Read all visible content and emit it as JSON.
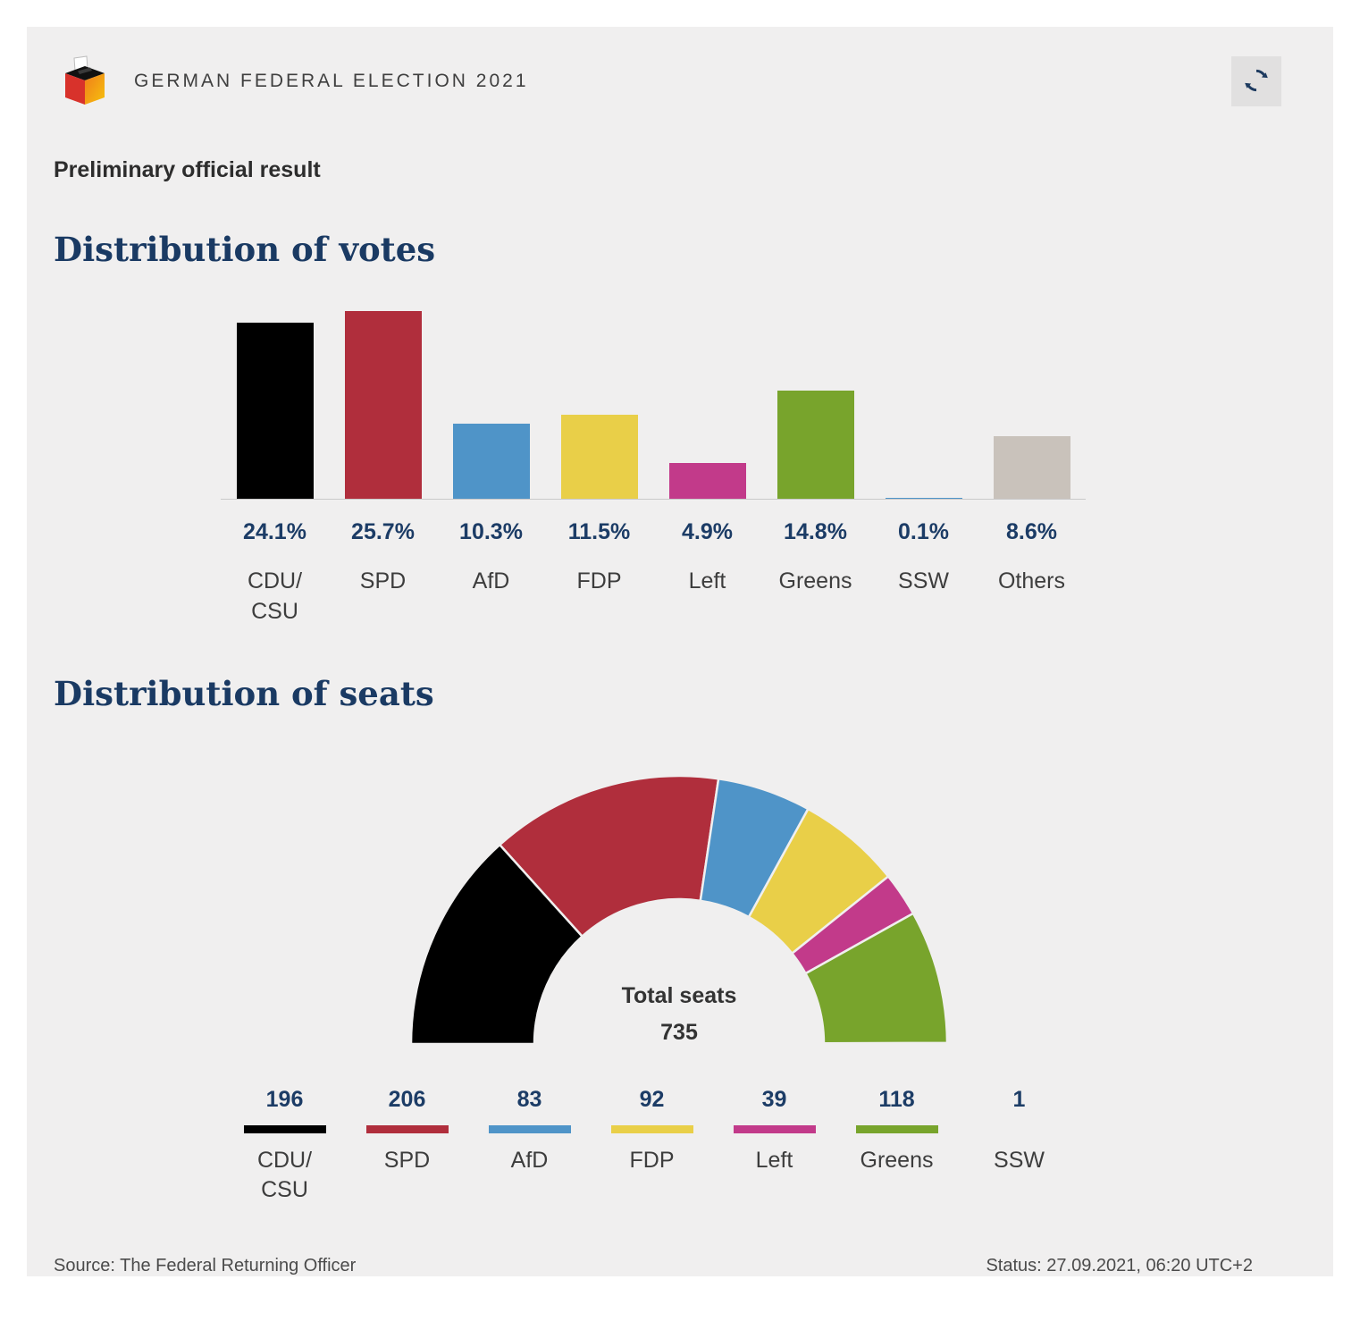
{
  "header": {
    "title": "GERMAN FEDERAL ELECTION 2021"
  },
  "subtitle": "Preliminary official result",
  "chart_data": [
    {
      "type": "bar",
      "title": "Distribution of votes",
      "categories": [
        "CDU/CSU",
        "SPD",
        "AfD",
        "FDP",
        "Left",
        "Greens",
        "SSW",
        "Others"
      ],
      "values": [
        24.1,
        25.7,
        10.3,
        11.5,
        4.9,
        14.8,
        0.1,
        8.6
      ],
      "value_labels": [
        "24.1%",
        "25.7%",
        "10.3%",
        "11.5%",
        "4.9%",
        "14.8%",
        "0.1%",
        "8.6%"
      ],
      "colors": [
        "#000000",
        "#b02e3c",
        "#4f94c8",
        "#e9cf48",
        "#c23a8a",
        "#78a42c",
        "#4f94c8",
        "#c9c2bb"
      ],
      "unit": "%",
      "ylim": [
        0,
        25.7
      ],
      "grid": false,
      "legend": "none"
    },
    {
      "type": "pie",
      "subtype": "half-donut",
      "title": "Distribution of seats",
      "categories": [
        "CDU/CSU",
        "SPD",
        "AfD",
        "FDP",
        "Left",
        "Greens",
        "SSW"
      ],
      "values": [
        196,
        206,
        83,
        92,
        39,
        118,
        1
      ],
      "colors": [
        "#000000",
        "#b02e3c",
        "#4f94c8",
        "#e9cf48",
        "#c23a8a",
        "#78a42c",
        null
      ],
      "center_label": "Total seats",
      "total": 735
    }
  ],
  "footer": {
    "source": "Source: The Federal Returning Officer",
    "status": "Status: 27.09.2021, 06:20 UTC+2"
  }
}
